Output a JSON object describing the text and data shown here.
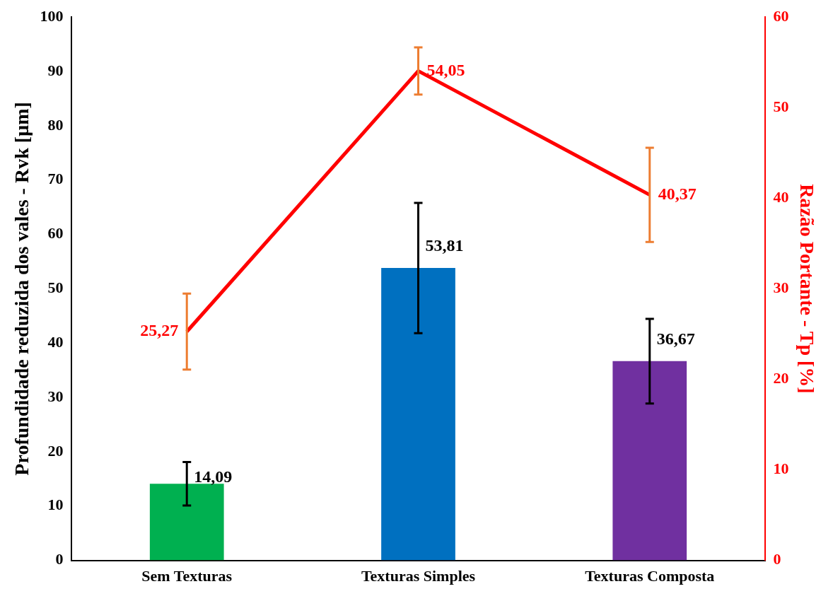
{
  "chart_data": {
    "type": "bar",
    "categories": [
      "Sem Texturas",
      "Texturas Simples",
      "Texturas Composta"
    ],
    "ylabel": "Profundidade reduzida dos vales - Rvk [µm]",
    "y2label": "Razão Portante - Tp [%]",
    "series": [
      {
        "colors": [
          "#00b050",
          "#0070c0",
          "#7030a0"
        ],
        "values": [
          14.09,
          53.81,
          36.67
        ],
        "value_labels": [
          "14,09",
          "53,81",
          "36,67"
        ],
        "errors": [
          4,
          12,
          7.8
        ]
      },
      {
        "type": "line",
        "axis": "y2",
        "color": "#ff0000",
        "values": [
          25.27,
          54.05,
          40.37
        ],
        "value_labels": [
          "25,27",
          "54,05",
          "40,37"
        ],
        "errors": [
          4.2,
          2.6,
          5.2
        ]
      }
    ],
    "ylim": [
      0,
      100
    ],
    "yticks": [
      0,
      10,
      20,
      30,
      40,
      50,
      60,
      70,
      80,
      90,
      100
    ],
    "y2lim": [
      0,
      60
    ],
    "y2ticks": [
      0,
      10,
      20,
      30,
      40,
      50,
      60
    ],
    "grid": false,
    "legend": false
  }
}
